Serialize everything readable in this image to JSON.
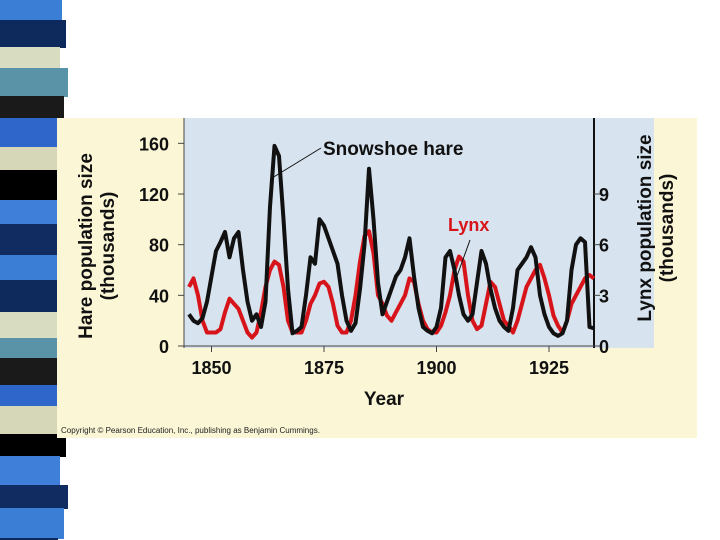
{
  "slide": {
    "copyright": "Copyright © Pearson Education, Inc., publishing as Benjamin Cummings."
  },
  "colors": {
    "panel": "#fbf6d6",
    "plot_bg": "#d7e3ee",
    "hare_line": "#111111",
    "lynx_line": "#d8141b",
    "lynx_label": "#d8141b"
  },
  "chart_data": {
    "type": "line",
    "title": "",
    "xlabel": "Year",
    "ylabel_left_lines": [
      "Hare population size",
      "(thousands)"
    ],
    "ylabel_right_lines": [
      "Lynx population size",
      "(thousands)"
    ],
    "xlim": [
      1845,
      1935
    ],
    "ylim_left": [
      0,
      180
    ],
    "ylim_right": [
      0,
      13.5
    ],
    "x_ticks": [
      1850,
      1875,
      1900,
      1925
    ],
    "y_ticks_left": [
      0,
      40,
      80,
      120,
      160
    ],
    "y_ticks_right": [
      0,
      3,
      6,
      9
    ],
    "grid": false,
    "annotations": [
      {
        "text": "Snowshoe hare",
        "series": "Snowshoe hare",
        "color": "#111111"
      },
      {
        "text": "Lynx",
        "series": "Lynx",
        "color": "#d8141b"
      }
    ],
    "series": [
      {
        "name": "Snowshoe hare",
        "axis": "left",
        "x": [
          1845,
          1846,
          1847,
          1848,
          1849,
          1850,
          1851,
          1852,
          1853,
          1854,
          1855,
          1856,
          1857,
          1858,
          1859,
          1860,
          1861,
          1862,
          1863,
          1864,
          1865,
          1866,
          1867,
          1868,
          1869,
          1870,
          1871,
          1872,
          1873,
          1874,
          1875,
          1876,
          1877,
          1878,
          1879,
          1880,
          1881,
          1882,
          1883,
          1884,
          1885,
          1886,
          1887,
          1888,
          1889,
          1890,
          1891,
          1892,
          1893,
          1894,
          1895,
          1896,
          1897,
          1898,
          1899,
          1900,
          1901,
          1902,
          1903,
          1904,
          1905,
          1906,
          1907,
          1908,
          1909,
          1910,
          1911,
          1912,
          1913,
          1914,
          1915,
          1916,
          1917,
          1918,
          1919,
          1920,
          1921,
          1922,
          1923,
          1924,
          1925,
          1926,
          1927,
          1928,
          1929,
          1930,
          1931,
          1932,
          1933,
          1934,
          1935
        ],
        "y": [
          25,
          20,
          18,
          22,
          35,
          55,
          75,
          82,
          90,
          70,
          85,
          90,
          60,
          35,
          20,
          25,
          15,
          35,
          110,
          158,
          150,
          100,
          45,
          10,
          12,
          15,
          40,
          70,
          65,
          100,
          95,
          85,
          75,
          65,
          40,
          20,
          12,
          18,
          45,
          80,
          140,
          100,
          50,
          25,
          35,
          45,
          55,
          60,
          70,
          85,
          55,
          30,
          15,
          12,
          10,
          15,
          30,
          70,
          75,
          60,
          40,
          25,
          20,
          25,
          50,
          75,
          65,
          45,
          30,
          20,
          15,
          12,
          30,
          60,
          65,
          70,
          78,
          70,
          40,
          25,
          15,
          10,
          8,
          10,
          20,
          60,
          80,
          85,
          82,
          15,
          14
        ]
      },
      {
        "name": "Lynx",
        "axis": "right",
        "x": [
          1845,
          1846,
          1847,
          1848,
          1849,
          1850,
          1851,
          1852,
          1853,
          1854,
          1855,
          1856,
          1857,
          1858,
          1859,
          1860,
          1861,
          1862,
          1863,
          1864,
          1865,
          1866,
          1867,
          1868,
          1869,
          1870,
          1871,
          1872,
          1873,
          1874,
          1875,
          1876,
          1877,
          1878,
          1879,
          1880,
          1881,
          1882,
          1883,
          1884,
          1885,
          1886,
          1887,
          1888,
          1889,
          1890,
          1891,
          1892,
          1893,
          1894,
          1895,
          1896,
          1897,
          1898,
          1899,
          1900,
          1901,
          1902,
          1903,
          1904,
          1905,
          1906,
          1907,
          1908,
          1909,
          1910,
          1911,
          1912,
          1913,
          1914,
          1915,
          1916,
          1917,
          1918,
          1919,
          1920,
          1921,
          1922,
          1923,
          1924,
          1925,
          1926,
          1927,
          1928,
          1929,
          1930,
          1931,
          1932,
          1933,
          1934,
          1935
        ],
        "y": [
          3.5,
          4,
          3,
          1.5,
          0.8,
          0.8,
          0.8,
          1,
          2,
          2.8,
          2.5,
          2.2,
          1.5,
          0.8,
          0.5,
          0.8,
          2,
          3.5,
          4.5,
          5,
          4.8,
          3.5,
          1.5,
          0.8,
          0.8,
          0.8,
          1.5,
          2.5,
          3,
          3.7,
          3.8,
          3.5,
          2.5,
          1.2,
          0.8,
          0.8,
          1.5,
          3,
          5,
          6.5,
          6.8,
          5.5,
          3,
          2.5,
          1.8,
          1.5,
          2,
          2.5,
          3,
          4,
          3.8,
          2.5,
          1.5,
          1,
          0.8,
          0.8,
          1.2,
          2,
          3,
          4.5,
          5.3,
          5,
          3,
          1.5,
          1,
          1.2,
          2.5,
          3.8,
          3.5,
          2.5,
          1.5,
          1.2,
          0.8,
          1.5,
          2.5,
          3.5,
          4,
          4.5,
          4.8,
          4,
          3,
          1.8,
          1.2,
          0.8,
          1.5,
          2.5,
          3,
          3.5,
          4,
          4.2,
          4
        ]
      }
    ]
  }
}
